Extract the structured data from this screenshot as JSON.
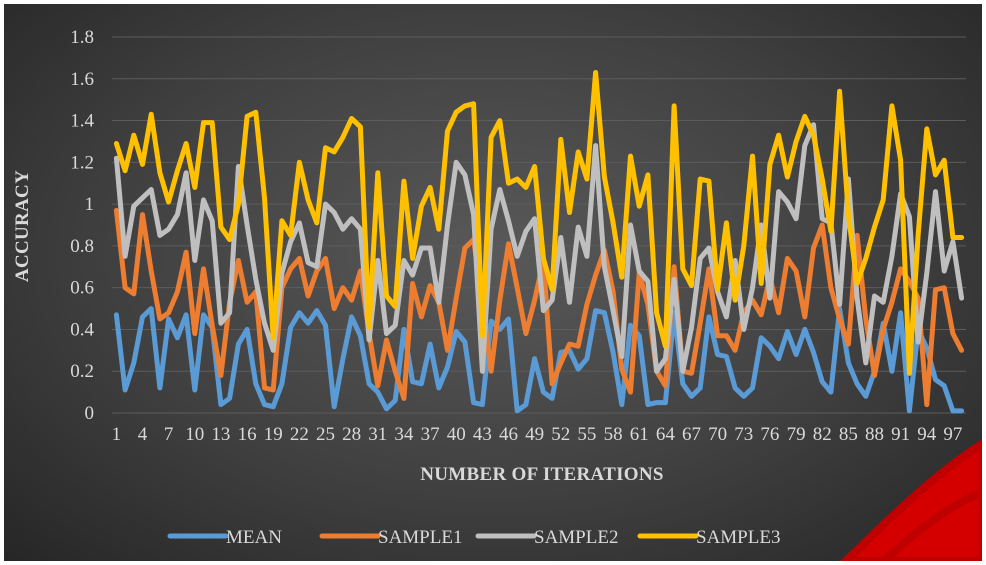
{
  "chart_data": {
    "type": "line",
    "title": "",
    "xlabel": "NUMBER OF ITERATIONS",
    "ylabel": "ACCURACY",
    "ylim": [
      0,
      1.8
    ],
    "yticks": [
      "0",
      "0.2",
      "0.4",
      "0.6",
      "0.8",
      "1",
      "1.2",
      "1.4",
      "1.6",
      "1.8"
    ],
    "xtick_labels": [
      "1",
      "4",
      "7",
      "10",
      "13",
      "16",
      "19",
      "22",
      "25",
      "28",
      "31",
      "34",
      "37",
      "40",
      "43",
      "46",
      "49",
      "52",
      "55",
      "58",
      "61",
      "64",
      "67",
      "70",
      "73",
      "76",
      "79",
      "82",
      "85",
      "88",
      "91",
      "94",
      "97"
    ],
    "grid": true,
    "legend_position": "bottom",
    "x": [
      1,
      2,
      3,
      4,
      5,
      6,
      7,
      8,
      9,
      10,
      11,
      12,
      13,
      14,
      15,
      16,
      17,
      18,
      19,
      20,
      21,
      22,
      23,
      24,
      25,
      26,
      27,
      28,
      29,
      30,
      31,
      32,
      33,
      34,
      35,
      36,
      37,
      38,
      39,
      40,
      41,
      42,
      43,
      44,
      45,
      46,
      47,
      48,
      49,
      50,
      51,
      52,
      53,
      54,
      55,
      56,
      57,
      58,
      59,
      60,
      61,
      62,
      63,
      64,
      65,
      66,
      67,
      68,
      69,
      70,
      71,
      72,
      73,
      74,
      75,
      76,
      77,
      78,
      79,
      80,
      81,
      82,
      83,
      84,
      85,
      86,
      87,
      88,
      89,
      90,
      91,
      92,
      93,
      94,
      95,
      96,
      97,
      98
    ],
    "series": [
      {
        "name": "MEAN",
        "color": "#5b9bd5",
        "values": [
          0.47,
          0.11,
          0.24,
          0.46,
          0.5,
          0.12,
          0.45,
          0.36,
          0.47,
          0.11,
          0.47,
          0.41,
          0.04,
          0.07,
          0.33,
          0.4,
          0.14,
          0.04,
          0.03,
          0.14,
          0.41,
          0.48,
          0.43,
          0.49,
          0.42,
          0.03,
          0.26,
          0.46,
          0.37,
          0.14,
          0.1,
          0.02,
          0.06,
          0.4,
          0.15,
          0.14,
          0.33,
          0.12,
          0.22,
          0.39,
          0.34,
          0.05,
          0.04,
          0.44,
          0.4,
          0.45,
          0.01,
          0.04,
          0.26,
          0.1,
          0.07,
          0.29,
          0.3,
          0.21,
          0.26,
          0.49,
          0.48,
          0.29,
          0.04,
          0.42,
          0.37,
          0.04,
          0.05,
          0.05,
          0.48,
          0.14,
          0.08,
          0.12,
          0.46,
          0.28,
          0.27,
          0.12,
          0.08,
          0.12,
          0.36,
          0.32,
          0.26,
          0.39,
          0.28,
          0.4,
          0.29,
          0.15,
          0.1,
          0.5,
          0.24,
          0.14,
          0.08,
          0.2,
          0.43,
          0.2,
          0.48,
          0.01,
          0.4,
          0.31,
          0.16,
          0.13,
          0.01,
          0.01
        ]
      },
      {
        "name": "SAMPLE1",
        "color": "#ed7d31",
        "values": [
          0.97,
          0.6,
          0.57,
          0.95,
          0.68,
          0.45,
          0.48,
          0.58,
          0.77,
          0.38,
          0.69,
          0.42,
          0.18,
          0.53,
          0.73,
          0.53,
          0.58,
          0.12,
          0.11,
          0.6,
          0.69,
          0.74,
          0.56,
          0.68,
          0.74,
          0.5,
          0.6,
          0.54,
          0.68,
          0.38,
          0.13,
          0.35,
          0.2,
          0.07,
          0.62,
          0.46,
          0.61,
          0.53,
          0.3,
          0.55,
          0.79,
          0.83,
          0.53,
          0.2,
          0.54,
          0.81,
          0.6,
          0.38,
          0.54,
          0.73,
          0.14,
          0.24,
          0.33,
          0.32,
          0.52,
          0.66,
          0.78,
          0.58,
          0.21,
          0.1,
          0.67,
          0.52,
          0.2,
          0.13,
          0.7,
          0.2,
          0.19,
          0.43,
          0.69,
          0.37,
          0.37,
          0.3,
          0.48,
          0.54,
          0.47,
          0.65,
          0.48,
          0.74,
          0.68,
          0.46,
          0.79,
          0.9,
          0.6,
          0.45,
          0.33,
          0.85,
          0.45,
          0.18,
          0.4,
          0.53,
          0.69,
          0.63,
          0.55,
          0.04,
          0.59,
          0.6,
          0.38,
          0.3
        ]
      },
      {
        "name": "SAMPLE2",
        "color": "#bfbfbf",
        "values": [
          1.22,
          0.75,
          0.99,
          1.03,
          1.07,
          0.85,
          0.88,
          0.95,
          1.15,
          0.73,
          1.02,
          0.92,
          0.43,
          0.48,
          1.18,
          0.9,
          0.64,
          0.43,
          0.3,
          0.67,
          0.82,
          0.91,
          0.72,
          0.7,
          1.0,
          0.96,
          0.88,
          0.93,
          0.88,
          0.35,
          0.73,
          0.38,
          0.42,
          0.73,
          0.66,
          0.79,
          0.79,
          0.53,
          0.9,
          1.2,
          1.14,
          0.95,
          0.2,
          0.88,
          1.07,
          0.92,
          0.75,
          0.87,
          0.93,
          0.49,
          0.54,
          0.84,
          0.53,
          0.89,
          0.75,
          1.28,
          0.7,
          0.49,
          0.27,
          0.9,
          0.68,
          0.63,
          0.2,
          0.26,
          0.64,
          0.2,
          0.41,
          0.74,
          0.79,
          0.58,
          0.46,
          0.73,
          0.4,
          0.6,
          0.9,
          0.55,
          1.06,
          1.01,
          0.93,
          1.28,
          1.38,
          0.93,
          0.91,
          0.52,
          1.12,
          0.55,
          0.24,
          0.56,
          0.53,
          0.75,
          1.05,
          0.94,
          0.34,
          0.67,
          1.06,
          0.68,
          0.82,
          0.55
        ]
      },
      {
        "name": "SAMPLE3",
        "color": "#ffc000",
        "values": [
          1.29,
          1.16,
          1.33,
          1.19,
          1.43,
          1.15,
          1.01,
          1.16,
          1.29,
          1.08,
          1.39,
          1.39,
          0.89,
          0.83,
          1.0,
          1.42,
          1.44,
          1.03,
          0.36,
          0.92,
          0.85,
          1.2,
          1.02,
          0.91,
          1.27,
          1.25,
          1.32,
          1.41,
          1.37,
          0.41,
          1.15,
          0.56,
          0.51,
          1.11,
          0.74,
          0.99,
          1.08,
          0.88,
          1.35,
          1.44,
          1.47,
          1.48,
          0.37,
          1.32,
          1.4,
          1.1,
          1.12,
          1.08,
          1.18,
          0.74,
          0.59,
          1.31,
          0.96,
          1.25,
          1.12,
          1.63,
          1.13,
          0.91,
          0.65,
          1.23,
          0.99,
          1.14,
          0.48,
          0.32,
          1.47,
          0.69,
          0.61,
          1.12,
          1.11,
          0.59,
          0.91,
          0.54,
          0.8,
          1.23,
          0.62,
          1.19,
          1.33,
          1.13,
          1.3,
          1.42,
          1.33,
          1.12,
          0.87,
          1.54,
          0.95,
          0.62,
          0.74,
          0.89,
          1.02,
          1.47,
          1.21,
          0.19,
          0.85,
          1.36,
          1.14,
          1.21,
          0.84,
          0.84
        ]
      }
    ]
  }
}
